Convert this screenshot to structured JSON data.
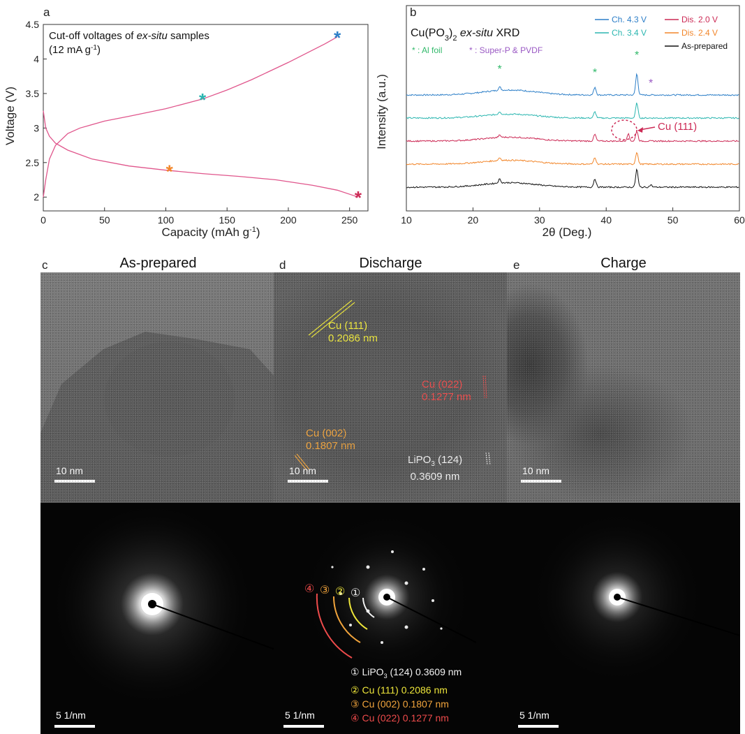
{
  "panels": {
    "a": "a",
    "b": "b",
    "c": "c",
    "d": "d",
    "e": "e"
  },
  "colors": {
    "curve": "#e0568c",
    "ch43": "#2d7fc8",
    "ch34": "#2bb6b0",
    "dis20": "#cc2a55",
    "dis24": "#f2862a",
    "asprep": "#111111",
    "al_star": "#31b96a",
    "sp_star": "#9a59c4"
  },
  "panel_a": {
    "title_line1_prefix": "Cut-off voltages of ",
    "title_line1_em": "ex-situ",
    "title_line1_suffix": " samples",
    "title_line2": "(12 mA g",
    "title_line2_sup": "-1",
    "title_line2_end": ")",
    "xlabel": "Capacity (mAh g",
    "xlabel_sup": "-1",
    "xlabel_end": ")",
    "ylabel": "Voltage (V)",
    "star": "*"
  },
  "panel_b": {
    "title_pre": "Cu(PO",
    "title_sub": "3",
    "title_mid": ")",
    "title_sub2": "2",
    "title_em": " ex-situ",
    "title_end": " XRD",
    "al_label": "* : Al foil",
    "sp_label": "* : Super-P & PVDF",
    "legend": [
      "Ch. 4.3 V",
      "Dis. 2.0 V",
      "Ch. 3.4 V",
      "Dis. 2.4 V",
      "As-prepared"
    ],
    "cu111": "Cu (111)",
    "xlabel": "2θ (Deg.)",
    "ylabel": "Intensity (a.u.)",
    "star": "*"
  },
  "tem": {
    "c_title": "As-prepared",
    "d_title": "Discharge",
    "e_title": "Charge",
    "scale_10nm": "10 nm",
    "scale_inv": "5  1/nm",
    "d_cu111_a": "Cu (111)",
    "d_cu111_b": "0.2086 nm",
    "d_cu022_a": "Cu (022)",
    "d_cu022_b": "0.1277 nm",
    "d_cu002_a": "Cu (002)",
    "d_cu002_b": "0.1807 nm",
    "d_lipo_a": "LiPO",
    "d_lipo_sub": "3",
    "d_lipo_a2": " (124)",
    "d_lipo_b": "0.3609 nm",
    "ring_nums": [
      "④",
      "③",
      "②",
      "①"
    ],
    "ring_legend": [
      {
        "num": "①",
        "pre": " LiPO",
        "sub": "3",
        "post": " (124) 0.3609 nm"
      },
      {
        "num": "②",
        "pre": " Cu (111) 0.2086 nm",
        "sub": "",
        "post": ""
      },
      {
        "num": "③",
        "pre": " Cu (002) 0.1807 nm",
        "sub": "",
        "post": ""
      },
      {
        "num": "④",
        "pre": " Cu (022) 0.1277 nm",
        "sub": "",
        "post": ""
      }
    ]
  },
  "chart_data": [
    {
      "type": "line",
      "title": "Cut-off voltages of ex-situ samples (12 mA g-1)",
      "xlabel": "Capacity (mAh g-1)",
      "ylabel": "Voltage (V)",
      "xlim": [
        0,
        265
      ],
      "ylim": [
        1.8,
        4.5
      ],
      "xticks": [
        0,
        50,
        100,
        150,
        200,
        250
      ],
      "yticks": [
        2,
        2.5,
        3,
        3.5,
        4,
        4.5
      ],
      "series": [
        {
          "name": "",
          "x": [
            0,
            2,
            5,
            10,
            20,
            30,
            50,
            70,
            100,
            130,
            150,
            170,
            200,
            230,
            240
          ],
          "y": [
            2.0,
            2.25,
            2.55,
            2.75,
            2.92,
            3.0,
            3.1,
            3.17,
            3.28,
            3.42,
            3.55,
            3.7,
            3.95,
            4.22,
            4.32
          ]
        },
        {
          "name": "",
          "x": [
            0,
            2,
            5,
            10,
            20,
            40,
            70,
            100,
            130,
            160,
            190,
            220,
            240,
            257
          ],
          "y": [
            3.25,
            3.0,
            2.88,
            2.78,
            2.68,
            2.55,
            2.45,
            2.39,
            2.34,
            2.3,
            2.25,
            2.17,
            2.1,
            2.0
          ]
        }
      ],
      "markers": [
        {
          "x": 240,
          "y": 4.32,
          "color": "#2d7fc8"
        },
        {
          "x": 130,
          "y": 3.42,
          "color": "#2bb6b0"
        },
        {
          "x": 103,
          "y": 2.38,
          "color": "#f2862a"
        },
        {
          "x": 257,
          "y": 2.0,
          "color": "#cc2a55"
        }
      ]
    },
    {
      "type": "line",
      "title": "Cu(PO3)2 ex-situ XRD",
      "xlabel": "2θ (Deg.)",
      "ylabel": "Intensity (a.u.)",
      "xlim": [
        10,
        60
      ],
      "xticks": [
        10,
        20,
        30,
        40,
        50,
        60
      ],
      "series": [
        {
          "name": "Ch. 4.3 V",
          "offset": 4,
          "peaks": [
            [
              24,
              0.3
            ],
            [
              38.3,
              0.7
            ],
            [
              44.6,
              1.9
            ]
          ],
          "hump": 0.45
        },
        {
          "name": "Ch. 3.4 V",
          "offset": 3,
          "peaks": [
            [
              24,
              0.25
            ],
            [
              38.3,
              0.55
            ],
            [
              44.6,
              1.35
            ]
          ],
          "hump": 0.35
        },
        {
          "name": "Dis. 2.0 V",
          "offset": 2,
          "peaks": [
            [
              24,
              0.2
            ],
            [
              38.3,
              0.6
            ],
            [
              43.3,
              0.65
            ],
            [
              44.6,
              0.9
            ]
          ],
          "hump": 0.35
        },
        {
          "name": "Dis. 2.4 V",
          "offset": 1,
          "peaks": [
            [
              24,
              0.25
            ],
            [
              38.3,
              0.6
            ],
            [
              44.6,
              1.1
            ]
          ],
          "hump": 0.35
        },
        {
          "name": "As-prepared",
          "offset": 0,
          "peaks": [
            [
              24,
              0.35
            ],
            [
              38.3,
              0.75
            ],
            [
              44.6,
              1.6
            ],
            [
              46.7,
              0.2
            ]
          ],
          "hump": 0.4
        }
      ]
    }
  ]
}
